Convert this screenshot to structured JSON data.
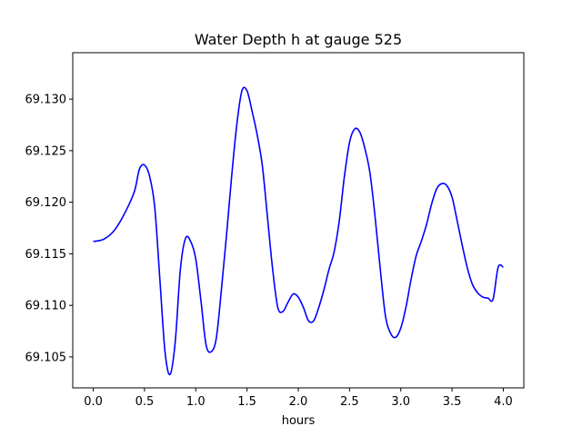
{
  "chart_data": {
    "type": "line",
    "title": "Water Depth h at gauge 525",
    "xlabel": "hours",
    "ylabel": "",
    "xlim": [
      -0.2,
      4.2
    ],
    "ylim": [
      69.102,
      69.1345
    ],
    "xticks": [
      0.0,
      0.5,
      1.0,
      1.5,
      2.0,
      2.5,
      3.0,
      3.5,
      4.0
    ],
    "xtick_labels": [
      "0.0",
      "0.5",
      "1.0",
      "1.5",
      "2.0",
      "2.5",
      "3.0",
      "3.5",
      "4.0"
    ],
    "yticks": [
      69.105,
      69.11,
      69.115,
      69.12,
      69.125,
      69.13
    ],
    "ytick_labels": [
      "69.105",
      "69.110",
      "69.115",
      "69.120",
      "69.125",
      "69.130"
    ],
    "grid": false,
    "series": [
      {
        "color": "#0000ff",
        "x": [
          0.0,
          0.1,
          0.2,
          0.3,
          0.4,
          0.45,
          0.5,
          0.55,
          0.6,
          0.65,
          0.7,
          0.75,
          0.8,
          0.85,
          0.9,
          0.95,
          1.0,
          1.05,
          1.1,
          1.15,
          1.2,
          1.25,
          1.3,
          1.35,
          1.4,
          1.45,
          1.5,
          1.55,
          1.6,
          1.65,
          1.7,
          1.75,
          1.8,
          1.85,
          1.9,
          1.95,
          2.0,
          2.05,
          2.1,
          2.15,
          2.2,
          2.25,
          2.3,
          2.35,
          2.4,
          2.45,
          2.5,
          2.55,
          2.6,
          2.65,
          2.7,
          2.75,
          2.8,
          2.85,
          2.9,
          2.95,
          3.0,
          3.05,
          3.1,
          3.15,
          3.2,
          3.25,
          3.3,
          3.35,
          3.4,
          3.45,
          3.5,
          3.55,
          3.6,
          3.65,
          3.7,
          3.75,
          3.8,
          3.85,
          3.9,
          3.95,
          4.0
        ],
        "y": [
          69.1162,
          69.1164,
          69.1172,
          69.1188,
          69.121,
          69.1232,
          69.1236,
          69.1225,
          69.1195,
          69.1125,
          69.1055,
          69.1033,
          69.1065,
          69.1135,
          69.1165,
          69.1162,
          69.1145,
          69.1105,
          69.1062,
          69.1055,
          69.1068,
          69.1115,
          69.1168,
          69.1225,
          69.1275,
          69.1308,
          69.1308,
          69.1288,
          69.1265,
          69.1235,
          69.1185,
          69.1135,
          69.1098,
          69.1094,
          69.1103,
          69.1111,
          69.1108,
          69.1098,
          69.1085,
          69.1085,
          69.1098,
          69.1115,
          69.1135,
          69.1152,
          69.1182,
          69.1225,
          69.1258,
          69.1271,
          69.1268,
          69.1252,
          69.1228,
          69.1185,
          69.1135,
          69.109,
          69.1073,
          69.1069,
          69.1078,
          69.1098,
          69.1125,
          69.1148,
          69.1162,
          69.1178,
          69.1198,
          69.1213,
          69.1218,
          69.1216,
          69.1205,
          69.1182,
          69.1158,
          69.1136,
          69.112,
          69.1112,
          69.1108,
          69.1107,
          69.1106,
          69.1137,
          69.1137
        ]
      }
    ]
  }
}
